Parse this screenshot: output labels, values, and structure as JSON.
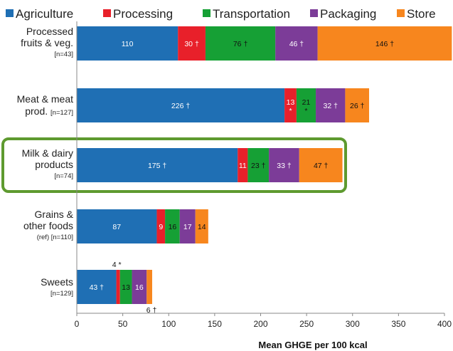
{
  "chart_data": {
    "type": "bar",
    "orientation": "horizontal",
    "stacked": true,
    "xlabel": "Mean GHGE per 100 kcal",
    "xlim": [
      0,
      400
    ],
    "xticks": [
      "0",
      "50",
      "100",
      "150",
      "200",
      "250",
      "300",
      "350",
      "400"
    ],
    "legend_position": "top",
    "grid": false,
    "categories": [
      {
        "lines": [
          "Processed",
          "fruits & veg."
        ],
        "n": "[n=43]"
      },
      {
        "lines": [
          "Meat & meat"
        ],
        "last_line": "prod.",
        "n": "[n=127]"
      },
      {
        "lines": [
          "Milk & dairy",
          "products"
        ],
        "n": "[n=74]"
      },
      {
        "lines": [
          "Grains &",
          "other foods"
        ],
        "n": "(ref) [n=110]"
      },
      {
        "lines": [
          "Sweets"
        ],
        "n": "[n=129]"
      }
    ],
    "series": [
      {
        "name": "Agriculture",
        "color": "#1f6fb4",
        "text_color": "#ffffff",
        "values": [
          110,
          226,
          175,
          87,
          43
        ],
        "labels": [
          "110",
          "226 †",
          "175 †",
          "87",
          "43 †"
        ]
      },
      {
        "name": "Processing",
        "color": "#e8202a",
        "text_color": "#ffffff",
        "values": [
          30,
          13,
          11,
          9,
          4
        ],
        "labels": [
          "30 †",
          "13",
          "11",
          "9",
          ""
        ],
        "sublabels": [
          "",
          "*",
          "",
          "",
          ""
        ]
      },
      {
        "name": "Transportation",
        "color": "#16a035",
        "text_color": "#111111",
        "values": [
          76,
          21,
          23,
          16,
          13
        ],
        "labels": [
          "76 †",
          "21",
          "23 †",
          "16",
          "13"
        ],
        "sublabels": [
          "",
          "*",
          "",
          "",
          ""
        ]
      },
      {
        "name": "Packaging",
        "color": "#7c3c98",
        "text_color": "#ffffff",
        "values": [
          46,
          32,
          33,
          17,
          16
        ],
        "labels": [
          "46 †",
          "32 †",
          "33 †",
          "17",
          "16"
        ]
      },
      {
        "name": "Store",
        "color": "#f7861e",
        "text_color": "#111111",
        "values": [
          146,
          26,
          47,
          14,
          6
        ],
        "labels": [
          "146 †",
          "26 †",
          "47 †",
          "14",
          ""
        ]
      }
    ],
    "annotations": [
      {
        "text": "4 *",
        "category": "Sweets",
        "series": "Processing",
        "side": "above"
      },
      {
        "text": "6 †",
        "category": "Sweets",
        "series": "Store",
        "side": "below"
      }
    ],
    "highlight": {
      "category": "Milk & dairy products",
      "color": "#5e9a2f"
    }
  }
}
